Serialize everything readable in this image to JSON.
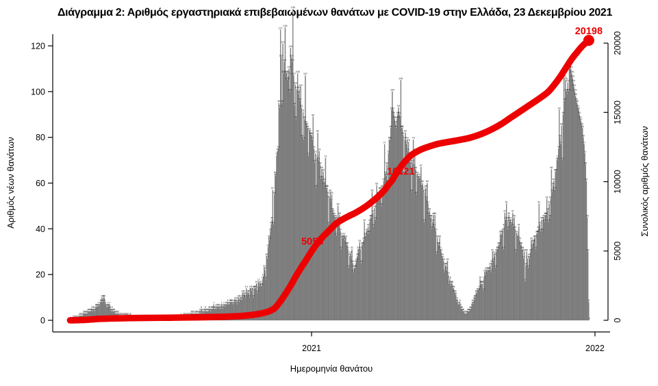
{
  "title": "Διάγραμμα 2: Αριθμός εργαστηριακά επιβεβαιωμένων θανάτων με COVID-19 στην Ελλάδα, 23 Δεκεμβρίου 2021",
  "chart_data": {
    "type": "bar",
    "description": "Daily laboratory-confirmed COVID-19 deaths in Greece by date of death (gray bars, left axis) with cumulative total deaths (red line, right axis). Day 0 = late Feb 2020, day 311 = 1 Jan 2021, day 667 = 23 Dec 2021.",
    "x_axis": {
      "label": "Ημερομηνία θανάτου",
      "tick_labels": [
        "2021",
        "2022"
      ],
      "tick_days": [
        310,
        675
      ],
      "total_days": 668
    },
    "y_left": {
      "label": "Αριθμός νέων θανάτων",
      "ticks": [
        0,
        20,
        40,
        60,
        80,
        100,
        120
      ],
      "range": [
        0,
        120
      ]
    },
    "y_right": {
      "label": "Συνολικός αριθμός θανάτων",
      "ticks": [
        0,
        5000,
        10000,
        15000,
        20000
      ],
      "range": [
        0,
        20000
      ]
    },
    "bar_series": {
      "name": "daily-new-deaths",
      "anchors": [
        [
          0,
          0
        ],
        [
          4,
          1
        ],
        [
          9,
          1
        ],
        [
          14,
          2
        ],
        [
          19,
          3
        ],
        [
          25,
          4
        ],
        [
          30,
          5
        ],
        [
          33,
          6
        ],
        [
          36,
          6
        ],
        [
          39,
          8
        ],
        [
          42,
          10
        ],
        [
          45,
          7
        ],
        [
          48,
          7
        ],
        [
          51,
          5
        ],
        [
          55,
          4
        ],
        [
          60,
          3
        ],
        [
          66,
          2
        ],
        [
          73,
          2
        ],
        [
          80,
          1
        ],
        [
          88,
          1
        ],
        [
          97,
          1
        ],
        [
          105,
          0
        ],
        [
          112,
          1
        ],
        [
          120,
          1
        ],
        [
          127,
          1
        ],
        [
          134,
          1
        ],
        [
          140,
          1
        ],
        [
          146,
          2
        ],
        [
          152,
          2
        ],
        [
          158,
          3
        ],
        [
          163,
          3
        ],
        [
          169,
          4
        ],
        [
          175,
          4
        ],
        [
          182,
          5
        ],
        [
          189,
          6
        ],
        [
          195,
          6
        ],
        [
          200,
          7
        ],
        [
          205,
          8
        ],
        [
          210,
          8
        ],
        [
          215,
          9
        ],
        [
          219,
          9
        ],
        [
          224,
          11
        ],
        [
          228,
          12
        ],
        [
          233,
          13
        ],
        [
          237,
          14
        ],
        [
          241,
          15
        ],
        [
          244,
          16
        ],
        [
          247,
          18
        ],
        [
          250,
          22
        ],
        [
          253,
          27
        ],
        [
          256,
          35
        ],
        [
          259,
          44
        ],
        [
          262,
          55
        ],
        [
          265,
          72
        ],
        [
          268,
          95
        ],
        [
          271,
          115
        ],
        [
          273,
          121
        ],
        [
          275,
          113
        ],
        [
          277,
          108
        ],
        [
          279,
          105
        ],
        [
          281,
          110
        ],
        [
          283,
          119
        ],
        [
          285,
          113
        ],
        [
          287,
          107
        ],
        [
          289,
          103
        ],
        [
          291,
          101
        ],
        [
          293,
          99
        ],
        [
          295,
          96
        ],
        [
          297,
          93
        ],
        [
          299,
          91
        ],
        [
          301,
          88
        ],
        [
          303,
          86
        ],
        [
          305,
          84
        ],
        [
          307,
          83
        ],
        [
          309,
          81
        ],
        [
          311,
          79
        ],
        [
          313,
          75
        ],
        [
          315,
          73
        ],
        [
          317,
          71
        ],
        [
          319,
          70
        ],
        [
          321,
          68
        ],
        [
          323,
          66
        ],
        [
          325,
          65
        ],
        [
          327,
          61
        ],
        [
          329,
          58
        ],
        [
          331,
          55
        ],
        [
          333,
          53
        ],
        [
          335,
          52
        ],
        [
          337,
          48
        ],
        [
          339,
          46
        ],
        [
          341,
          45
        ],
        [
          343,
          44
        ],
        [
          345,
          42
        ],
        [
          347,
          39
        ],
        [
          349,
          37
        ],
        [
          351,
          36
        ],
        [
          353,
          35
        ],
        [
          355,
          33
        ],
        [
          357,
          31
        ],
        [
          359,
          28
        ],
        [
          361,
          27
        ],
        [
          363,
          25
        ],
        [
          365,
          23
        ],
        [
          367,
          25
        ],
        [
          369,
          28
        ],
        [
          371,
          30
        ],
        [
          373,
          31
        ],
        [
          375,
          33
        ],
        [
          377,
          35
        ],
        [
          379,
          37
        ],
        [
          381,
          39
        ],
        [
          383,
          41
        ],
        [
          385,
          43
        ],
        [
          387,
          45
        ],
        [
          389,
          47
        ],
        [
          391,
          49
        ],
        [
          393,
          51
        ],
        [
          395,
          53
        ],
        [
          397,
          54
        ],
        [
          399,
          57
        ],
        [
          401,
          58
        ],
        [
          403,
          61
        ],
        [
          405,
          64
        ],
        [
          407,
          68
        ],
        [
          409,
          73
        ],
        [
          411,
          79
        ],
        [
          412,
          84
        ],
        [
          413,
          92
        ],
        [
          414,
          100
        ],
        [
          415,
          92
        ],
        [
          416,
          90
        ],
        [
          417,
          88
        ],
        [
          418,
          86
        ],
        [
          419,
          84
        ],
        [
          420,
          88
        ],
        [
          421,
          90
        ],
        [
          422,
          93
        ],
        [
          423,
          90
        ],
        [
          424,
          88
        ],
        [
          426,
          84
        ],
        [
          428,
          81
        ],
        [
          430,
          79
        ],
        [
          432,
          77
        ],
        [
          434,
          74
        ],
        [
          436,
          72
        ],
        [
          438,
          70
        ],
        [
          440,
          69
        ],
        [
          442,
          67
        ],
        [
          444,
          66
        ],
        [
          446,
          64
        ],
        [
          448,
          63
        ],
        [
          450,
          61
        ],
        [
          452,
          58
        ],
        [
          454,
          57
        ],
        [
          456,
          56
        ],
        [
          458,
          53
        ],
        [
          460,
          51
        ],
        [
          462,
          48
        ],
        [
          464,
          45
        ],
        [
          466,
          43
        ],
        [
          468,
          41
        ],
        [
          470,
          39
        ],
        [
          472,
          36
        ],
        [
          474,
          33
        ],
        [
          476,
          31
        ],
        [
          478,
          28
        ],
        [
          480,
          26
        ],
        [
          482,
          24
        ],
        [
          484,
          22
        ],
        [
          486,
          20
        ],
        [
          488,
          18
        ],
        [
          490,
          16
        ],
        [
          492,
          14
        ],
        [
          494,
          12
        ],
        [
          496,
          11
        ],
        [
          498,
          9
        ],
        [
          500,
          7
        ],
        [
          502,
          6
        ],
        [
          504,
          5
        ],
        [
          506,
          4
        ],
        [
          508,
          3
        ],
        [
          510,
          3
        ],
        [
          512,
          4
        ],
        [
          514,
          5
        ],
        [
          516,
          6
        ],
        [
          518,
          7
        ],
        [
          520,
          10
        ],
        [
          522,
          12
        ],
        [
          524,
          13
        ],
        [
          526,
          14
        ],
        [
          528,
          16
        ],
        [
          530,
          16
        ],
        [
          532,
          18
        ],
        [
          534,
          20
        ],
        [
          536,
          21
        ],
        [
          538,
          22
        ],
        [
          540,
          24
        ],
        [
          542,
          25
        ],
        [
          544,
          26
        ],
        [
          546,
          28
        ],
        [
          548,
          30
        ],
        [
          550,
          31
        ],
        [
          552,
          33
        ],
        [
          554,
          36
        ],
        [
          556,
          39
        ],
        [
          558,
          41
        ],
        [
          560,
          44
        ],
        [
          562,
          44
        ],
        [
          564,
          46
        ],
        [
          566,
          44
        ],
        [
          568,
          43
        ],
        [
          570,
          41
        ],
        [
          572,
          40
        ],
        [
          574,
          38
        ],
        [
          576,
          36
        ],
        [
          578,
          35
        ],
        [
          580,
          33
        ],
        [
          582,
          31
        ],
        [
          584,
          30
        ],
        [
          585,
          17
        ],
        [
          586,
          24
        ],
        [
          588,
          27
        ],
        [
          590,
          28
        ],
        [
          592,
          30
        ],
        [
          594,
          32
        ],
        [
          596,
          34
        ],
        [
          598,
          36
        ],
        [
          600,
          38
        ],
        [
          602,
          40
        ],
        [
          604,
          42
        ],
        [
          606,
          44
        ],
        [
          608,
          44
        ],
        [
          610,
          43
        ],
        [
          612,
          46
        ],
        [
          614,
          48
        ],
        [
          616,
          51
        ],
        [
          618,
          53
        ],
        [
          620,
          56
        ],
        [
          622,
          61
        ],
        [
          624,
          65
        ],
        [
          626,
          70
        ],
        [
          628,
          75
        ],
        [
          630,
          80
        ],
        [
          632,
          85
        ],
        [
          634,
          90
        ],
        [
          636,
          96
        ],
        [
          638,
          100
        ],
        [
          640,
          104
        ],
        [
          642,
          110
        ],
        [
          643,
          112
        ],
        [
          644,
          110
        ],
        [
          645,
          108
        ],
        [
          646,
          106
        ],
        [
          647,
          104
        ],
        [
          648,
          102
        ],
        [
          649,
          100
        ],
        [
          650,
          98
        ],
        [
          651,
          96
        ],
        [
          652,
          95
        ],
        [
          653,
          93
        ],
        [
          654,
          92
        ],
        [
          655,
          90
        ],
        [
          656,
          88
        ],
        [
          657,
          87
        ],
        [
          658,
          85
        ],
        [
          659,
          84
        ],
        [
          660,
          80
        ],
        [
          661,
          77
        ],
        [
          662,
          73
        ],
        [
          663,
          68
        ],
        [
          664,
          61
        ],
        [
          665,
          45
        ],
        [
          666,
          30
        ],
        [
          667,
          8
        ],
        [
          668,
          0
        ]
      ]
    },
    "line_series": {
      "name": "cumulative-deaths",
      "anchors": [
        [
          -1,
          0
        ],
        [
          20,
          40
        ],
        [
          40,
          110
        ],
        [
          66,
          150
        ],
        [
          97,
          175
        ],
        [
          127,
          190
        ],
        [
          158,
          210
        ],
        [
          189,
          245
        ],
        [
          204,
          270
        ],
        [
          219,
          310
        ],
        [
          235,
          400
        ],
        [
          245,
          490
        ],
        [
          252,
          590
        ],
        [
          258,
          720
        ],
        [
          263,
          900
        ],
        [
          268,
          1230
        ],
        [
          273,
          1620
        ],
        [
          278,
          2050
        ],
        [
          284,
          2600
        ],
        [
          290,
          3200
        ],
        [
          296,
          3750
        ],
        [
          303,
          4350
        ],
        [
          311,
          5056
        ],
        [
          318,
          5600
        ],
        [
          325,
          6050
        ],
        [
          333,
          6500
        ],
        [
          342,
          7000
        ],
        [
          350,
          7280
        ],
        [
          358,
          7520
        ],
        [
          366,
          7740
        ],
        [
          374,
          8000
        ],
        [
          382,
          8300
        ],
        [
          390,
          8650
        ],
        [
          397,
          9000
        ],
        [
          404,
          9400
        ],
        [
          410,
          9850
        ],
        [
          414,
          10121
        ],
        [
          418,
          10500
        ],
        [
          424,
          11000
        ],
        [
          431,
          11500
        ],
        [
          438,
          11900
        ],
        [
          445,
          12150
        ],
        [
          452,
          12350
        ],
        [
          462,
          12550
        ],
        [
          472,
          12720
        ],
        [
          482,
          12830
        ],
        [
          492,
          12930
        ],
        [
          505,
          13060
        ],
        [
          517,
          13220
        ],
        [
          530,
          13470
        ],
        [
          542,
          13780
        ],
        [
          554,
          14150
        ],
        [
          566,
          14600
        ],
        [
          578,
          15050
        ],
        [
          590,
          15500
        ],
        [
          602,
          15950
        ],
        [
          614,
          16450
        ],
        [
          622,
          16950
        ],
        [
          630,
          17550
        ],
        [
          638,
          18250
        ],
        [
          645,
          18850
        ],
        [
          652,
          19350
        ],
        [
          658,
          19750
        ],
        [
          663,
          20010
        ],
        [
          667,
          20198
        ]
      ]
    },
    "annotations": [
      {
        "text": "5056",
        "day": 311,
        "value": 5056
      },
      {
        "text": "10121",
        "day": 425,
        "value": 10121
      },
      {
        "text": "20198",
        "day": 667,
        "value": 20198
      }
    ],
    "colors": {
      "bar": "#858585",
      "bar_border": "#5c5c5c",
      "line": "#ed0000",
      "axis": "#000000",
      "bar_value_label": "#1b1b1b"
    },
    "legend": "none",
    "grid": "off"
  }
}
